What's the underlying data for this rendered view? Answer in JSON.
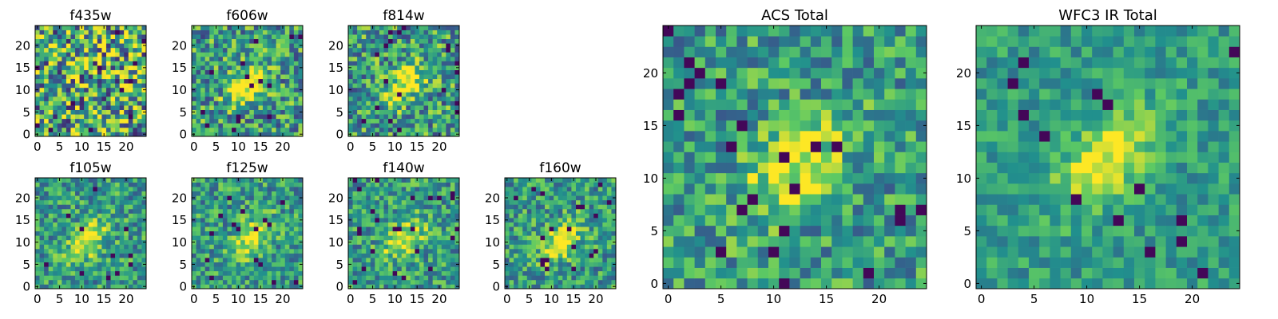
{
  "figure": {
    "colormap": "viridis",
    "colormap_stops": [
      "#440154",
      "#3b528b",
      "#21908d",
      "#5dc963",
      "#fde725"
    ],
    "frame_color": "#000000"
  },
  "chart_data": [
    {
      "type": "heatmap",
      "title": "f435w",
      "grid": false,
      "xlim": [
        0,
        24
      ],
      "ylim": [
        0,
        24
      ],
      "xticks": [
        "0",
        "5",
        "10",
        "15",
        "20"
      ],
      "yticks": [
        "0",
        "5",
        "10",
        "15",
        "20"
      ],
      "pattern": "noise",
      "blob": null,
      "noise_level": 0.9
    },
    {
      "type": "heatmap",
      "title": "f606w",
      "grid": false,
      "xlim": [
        0,
        24
      ],
      "ylim": [
        0,
        24
      ],
      "xticks": [
        "0",
        "5",
        "10",
        "15",
        "20"
      ],
      "yticks": [
        "0",
        "5",
        "10",
        "15",
        "20"
      ],
      "pattern": "diagonal-source",
      "blob": [
        12,
        11
      ],
      "noise_level": 0.7
    },
    {
      "type": "heatmap",
      "title": "f814w",
      "grid": false,
      "xlim": [
        0,
        24
      ],
      "ylim": [
        0,
        24
      ],
      "xticks": [
        "0",
        "5",
        "10",
        "15",
        "20"
      ],
      "yticks": [
        "0",
        "5",
        "10",
        "15",
        "20"
      ],
      "pattern": "diagonal-source",
      "blob": [
        12,
        11
      ],
      "noise_level": 0.7
    },
    {
      "type": "heatmap",
      "title": "f105w",
      "grid": false,
      "xlim": [
        0,
        24
      ],
      "ylim": [
        0,
        24
      ],
      "xticks": [
        "0",
        "5",
        "10",
        "15",
        "20"
      ],
      "yticks": [
        "0",
        "5",
        "10",
        "15",
        "20"
      ],
      "pattern": "diagonal-source",
      "blob": [
        11,
        10
      ],
      "noise_level": 0.55
    },
    {
      "type": "heatmap",
      "title": "f125w",
      "grid": false,
      "xlim": [
        0,
        24
      ],
      "ylim": [
        0,
        24
      ],
      "xticks": [
        "0",
        "5",
        "10",
        "15",
        "20"
      ],
      "yticks": [
        "0",
        "5",
        "10",
        "15",
        "20"
      ],
      "pattern": "diagonal-source",
      "blob": [
        13,
        11
      ],
      "noise_level": 0.55
    },
    {
      "type": "heatmap",
      "title": "f140w",
      "grid": false,
      "xlim": [
        0,
        24
      ],
      "ylim": [
        0,
        24
      ],
      "xticks": [
        "0",
        "5",
        "10",
        "15",
        "20"
      ],
      "yticks": [
        "0",
        "5",
        "10",
        "15",
        "20"
      ],
      "pattern": "diagonal-source",
      "blob": [
        12,
        11
      ],
      "noise_level": 0.55
    },
    {
      "type": "heatmap",
      "title": "f160w",
      "grid": false,
      "xlim": [
        0,
        24
      ],
      "ylim": [
        0,
        24
      ],
      "xticks": [
        "0",
        "5",
        "10",
        "15",
        "20"
      ],
      "yticks": [
        "0",
        "5",
        "10",
        "15",
        "20"
      ],
      "pattern": "diagonal-source",
      "blob": [
        12,
        10
      ],
      "noise_level": 0.55
    },
    {
      "type": "heatmap",
      "title": "ACS Total",
      "grid": false,
      "xlim": [
        0,
        24
      ],
      "ylim": [
        0,
        24
      ],
      "xticks": [
        "0",
        "5",
        "10",
        "15",
        "20"
      ],
      "yticks": [
        "0",
        "5",
        "10",
        "15",
        "20"
      ],
      "pattern": "diagonal-source",
      "blob": [
        12,
        11
      ],
      "noise_level": 0.55
    },
    {
      "type": "heatmap",
      "title": "WFC3 IR Total",
      "grid": false,
      "xlim": [
        0,
        24
      ],
      "ylim": [
        0,
        24
      ],
      "xticks": [
        "0",
        "5",
        "10",
        "15",
        "20"
      ],
      "yticks": [
        "0",
        "5",
        "10",
        "15",
        "20"
      ],
      "pattern": "diagonal-source",
      "blob": [
        12,
        12
      ],
      "noise_level": 0.35
    }
  ]
}
